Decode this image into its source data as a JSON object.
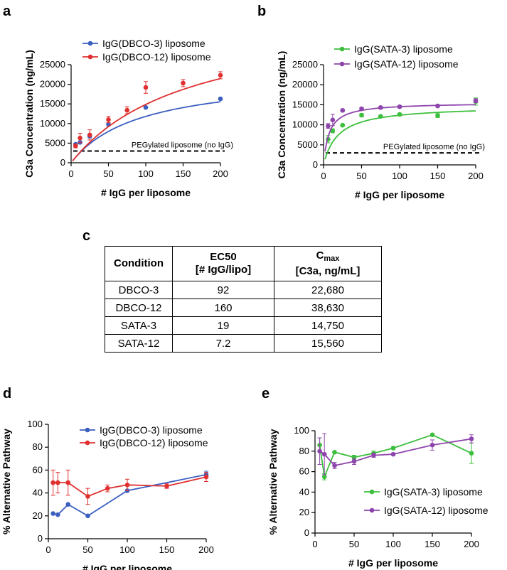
{
  "chart_data": [
    {
      "panel": "a",
      "type": "scatter",
      "ylabel": "C3a Concentration (ng/mL)",
      "xlabel": "# IgG per liposome",
      "xlim": [
        0,
        200
      ],
      "ylim": [
        0,
        25000
      ],
      "xticks": [
        0,
        50,
        100,
        150,
        200
      ],
      "yticks": [
        0,
        5000,
        10000,
        15000,
        20000,
        25000
      ],
      "legend_position": "top-left",
      "reference_line": {
        "y": 3000,
        "label": "PEGylated liposome (no IgG)"
      },
      "series": [
        {
          "name": "IgG(DBCO-3) liposome",
          "color": "#3b5fc0",
          "x": [
            6,
            12,
            25,
            50,
            100,
            200
          ],
          "y": [
            4700,
            5200,
            6800,
            9800,
            14100,
            16300
          ],
          "err": [
            300,
            300,
            500,
            400,
            200,
            200
          ],
          "fit": {
            "vmax": 22680,
            "ec50": 92
          }
        },
        {
          "name": "IgG(DBCO-12) liposome",
          "color": "#e03030",
          "x": [
            6,
            12,
            25,
            50,
            75,
            100,
            150,
            200
          ],
          "y": [
            4300,
            6300,
            7100,
            11000,
            13400,
            19200,
            20300,
            22300
          ],
          "err": [
            500,
            1200,
            1300,
            800,
            900,
            1500,
            900,
            900
          ],
          "fit": {
            "vmax": 38630,
            "ec50": 160
          }
        }
      ]
    },
    {
      "panel": "b",
      "type": "scatter",
      "ylabel": "C3a Concentration (ng/mL)",
      "xlabel": "# IgG per liposome",
      "xlim": [
        0,
        200
      ],
      "ylim": [
        0,
        25000
      ],
      "xticks": [
        0,
        50,
        100,
        150,
        200
      ],
      "yticks": [
        0,
        5000,
        10000,
        15000,
        20000,
        25000
      ],
      "legend_position": "top-right",
      "reference_line": {
        "y": 3000,
        "label": "PEGylated liposome (no IgG)"
      },
      "series": [
        {
          "name": "IgG(SATA-3) liposome",
          "color": "#3cbf3c",
          "x": [
            6,
            12,
            25,
            50,
            75,
            100,
            150,
            200
          ],
          "y": [
            6400,
            8500,
            9900,
            12400,
            12100,
            12600,
            12300,
            15800
          ],
          "err": [
            900,
            500,
            300,
            400,
            300,
            300,
            500,
            900
          ],
          "fit": {
            "vmax": 14750,
            "ec50": 19
          }
        },
        {
          "name": "IgG(SATA-12) liposome",
          "color": "#8e44ad",
          "x": [
            6,
            12,
            25,
            50,
            75,
            100,
            150,
            200
          ],
          "y": [
            9700,
            11200,
            13600,
            14000,
            14300,
            14500,
            14700,
            16000
          ],
          "err": [
            600,
            1400,
            300,
            300,
            300,
            300,
            300,
            500
          ],
          "fit": {
            "vmax": 15560,
            "ec50": 7.2
          }
        }
      ]
    },
    {
      "panel": "d",
      "type": "line",
      "ylabel": "% Alternative Pathway",
      "xlabel": "# IgG per liposome",
      "xlim": [
        0,
        200
      ],
      "ylim": [
        0,
        100
      ],
      "xticks": [
        0,
        50,
        100,
        150,
        200
      ],
      "yticks": [
        0,
        20,
        40,
        60,
        80,
        100
      ],
      "legend_position": "top-center",
      "series": [
        {
          "name": "IgG(DBCO-3) liposome",
          "color": "#3b5fc0",
          "x": [
            6,
            12,
            25,
            50,
            100,
            200
          ],
          "y": [
            22,
            21,
            30,
            20,
            42,
            56
          ],
          "err": [
            0,
            0,
            0,
            0,
            0,
            3
          ]
        },
        {
          "name": "IgG(DBCO-12) liposome",
          "color": "#e03030",
          "x": [
            6,
            12,
            25,
            50,
            75,
            100,
            150,
            200
          ],
          "y": [
            49,
            49,
            49,
            37,
            44,
            47,
            46,
            54
          ],
          "err": [
            11,
            9,
            11,
            7,
            3,
            5,
            2,
            4
          ]
        }
      ]
    },
    {
      "panel": "e",
      "type": "line",
      "ylabel": "% Alternative Pathway",
      "xlabel": "# IgG per liposome",
      "xlim": [
        0,
        200
      ],
      "ylim": [
        0,
        100
      ],
      "xticks": [
        0,
        50,
        100,
        150,
        200
      ],
      "yticks": [
        0,
        20,
        40,
        60,
        80,
        100
      ],
      "legend_position": "bottom-right",
      "series": [
        {
          "name": "IgG(SATA-3) liposome",
          "color": "#3cbf3c",
          "x": [
            6,
            12,
            25,
            50,
            75,
            100,
            150,
            200
          ],
          "y": [
            86,
            55,
            79,
            74,
            78,
            83,
            96,
            78
          ],
          "err": [
            7,
            3,
            0,
            2,
            2,
            1,
            0,
            10
          ]
        },
        {
          "name": "IgG(SATA-12) liposome",
          "color": "#8e44ad",
          "x": [
            6,
            12,
            25,
            50,
            75,
            100,
            150,
            200
          ],
          "y": [
            80,
            77,
            66,
            70,
            76,
            77,
            86,
            92
          ],
          "err": [
            13,
            20,
            3,
            3,
            2,
            1,
            5,
            4
          ]
        }
      ]
    }
  ],
  "table": {
    "panel": "c",
    "header": {
      "condition": "Condition",
      "ec50_line1": "EC50",
      "ec50_line2": "[# IgG/lipo]",
      "cmax_main": "C",
      "cmax_sub": "max",
      "cmax_line2": "[C3a, ng/mL]"
    },
    "rows": [
      {
        "condition": "DBCO-3",
        "ec50": "92",
        "cmax": "22,680"
      },
      {
        "condition": "DBCO-12",
        "ec50": "160",
        "cmax": "38,630"
      },
      {
        "condition": "SATA-3",
        "ec50": "19",
        "cmax": "14,750"
      },
      {
        "condition": "SATA-12",
        "ec50": "7.2",
        "cmax": "15,560"
      }
    ]
  }
}
